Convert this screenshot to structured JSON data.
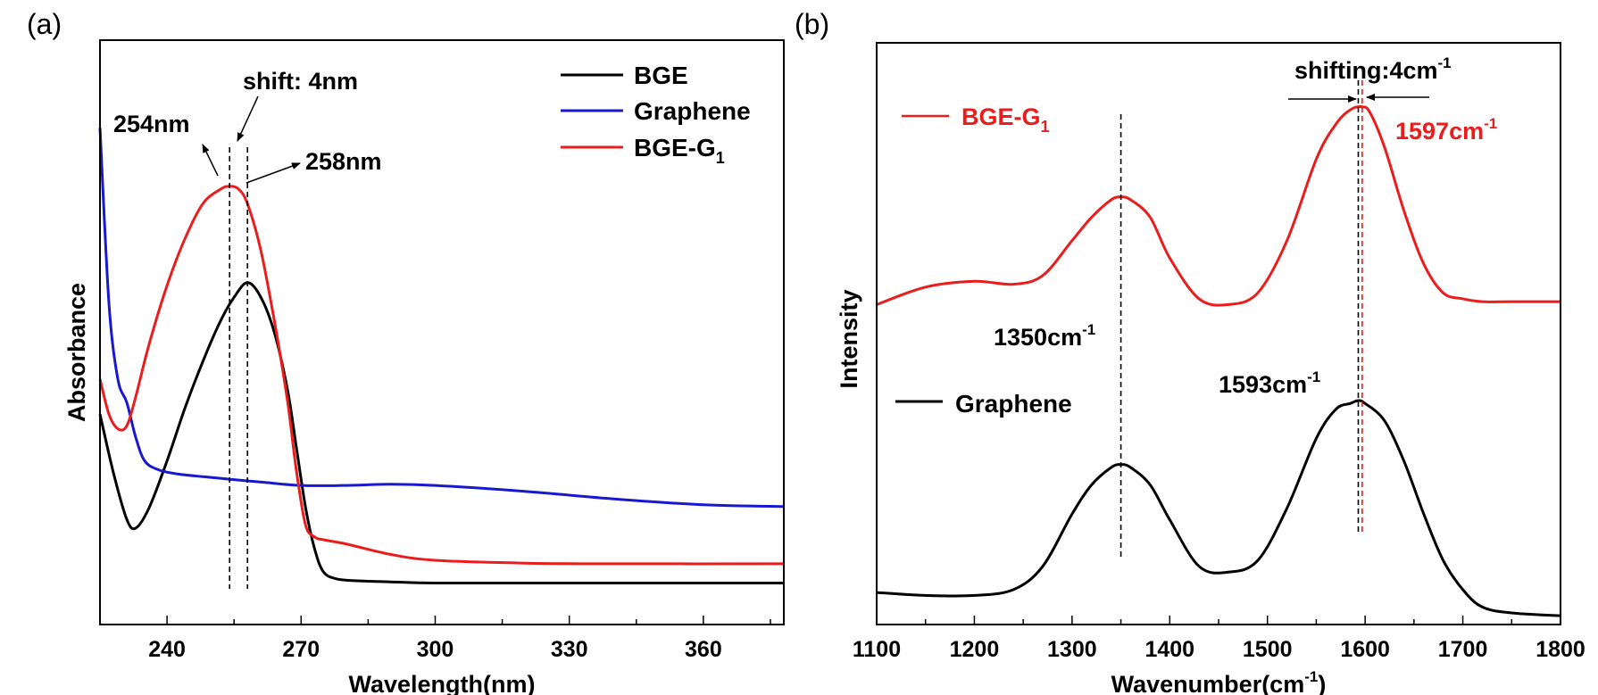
{
  "chart_data": [
    {
      "panel_label": "(a)",
      "type": "line",
      "xlabel": "Wavelength(nm)",
      "ylabel": "Absorbance",
      "xlim": [
        225,
        378
      ],
      "ylim": [
        0,
        1.0
      ],
      "xticks": [
        240,
        270,
        300,
        330,
        360
      ],
      "y_ticks_shown": false,
      "legend_position": "top-right",
      "series": [
        {
          "name": "BGE",
          "color": "#000000",
          "x": [
            225,
            228,
            231,
            233,
            236,
            240,
            244,
            248,
            252,
            255,
            258,
            261,
            264,
            267,
            269,
            271,
            273,
            275,
            278,
            282,
            290,
            300,
            320,
            340,
            378
          ],
          "y": [
            0.36,
            0.26,
            0.18,
            0.165,
            0.2,
            0.28,
            0.37,
            0.45,
            0.52,
            0.56,
            0.585,
            0.56,
            0.5,
            0.4,
            0.3,
            0.2,
            0.13,
            0.09,
            0.078,
            0.075,
            0.073,
            0.071,
            0.071,
            0.071,
            0.071
          ]
        },
        {
          "name": "Graphene",
          "color": "#1818d0",
          "x": [
            225,
            227,
            229,
            231,
            233,
            235,
            238,
            242,
            248,
            255,
            262,
            270,
            280,
            290,
            300,
            320,
            340,
            360,
            378
          ],
          "y": [
            0.85,
            0.55,
            0.42,
            0.38,
            0.32,
            0.28,
            0.265,
            0.258,
            0.253,
            0.248,
            0.243,
            0.238,
            0.238,
            0.24,
            0.238,
            0.228,
            0.215,
            0.205,
            0.202
          ]
        },
        {
          "name": "BGE-G",
          "name_subscript": "1",
          "color": "#ea1c1c",
          "x": [
            225,
            227,
            229,
            231,
            233,
            236,
            240,
            244,
            248,
            252,
            254,
            256,
            258,
            261,
            264,
            267,
            269,
            271,
            273,
            275,
            280,
            290,
            300,
            320,
            340,
            378
          ],
          "y": [
            0.42,
            0.36,
            0.335,
            0.34,
            0.39,
            0.48,
            0.58,
            0.66,
            0.72,
            0.745,
            0.75,
            0.745,
            0.72,
            0.64,
            0.52,
            0.38,
            0.26,
            0.17,
            0.15,
            0.145,
            0.138,
            0.12,
            0.11,
            0.105,
            0.104,
            0.104
          ]
        }
      ],
      "reference_lines_x": [
        254,
        258
      ],
      "annotations": [
        "254nm",
        "shift: 4nm",
        "258nm"
      ]
    },
    {
      "panel_label": "(b)",
      "type": "line",
      "xlabel": "Wavenumber(cm",
      "xlabel_superscript": "-1",
      "xlabel_suffix": ")",
      "ylabel": "Intensity",
      "xlim": [
        1100,
        1800
      ],
      "ylim": [
        0,
        1.0
      ],
      "xticks": [
        1100,
        1200,
        1300,
        1400,
        1500,
        1600,
        1700,
        1800
      ],
      "y_ticks_shown": false,
      "series": [
        {
          "name": "Graphene",
          "color": "#000000",
          "x": [
            1100,
            1150,
            1200,
            1240,
            1270,
            1300,
            1320,
            1340,
            1350,
            1360,
            1380,
            1400,
            1430,
            1460,
            1490,
            1520,
            1550,
            1570,
            1585,
            1593,
            1600,
            1620,
            1640,
            1660,
            1680,
            1700,
            1720,
            1750,
            1800
          ],
          "y": [
            0.055,
            0.05,
            0.05,
            0.06,
            0.1,
            0.19,
            0.24,
            0.27,
            0.275,
            0.27,
            0.24,
            0.18,
            0.1,
            0.09,
            0.11,
            0.2,
            0.32,
            0.37,
            0.38,
            0.385,
            0.38,
            0.35,
            0.28,
            0.19,
            0.11,
            0.06,
            0.03,
            0.02,
            0.015
          ]
        },
        {
          "name": "BGE-G",
          "name_subscript": "1",
          "color": "#ea1c1c",
          "x": [
            1100,
            1150,
            1200,
            1240,
            1270,
            1300,
            1320,
            1340,
            1350,
            1360,
            1380,
            1400,
            1430,
            1460,
            1490,
            1520,
            1550,
            1570,
            1585,
            1597,
            1605,
            1620,
            1640,
            1660,
            1680,
            1700,
            1720,
            1750,
            1800
          ],
          "y": [
            0.55,
            0.58,
            0.59,
            0.585,
            0.6,
            0.66,
            0.7,
            0.73,
            0.735,
            0.73,
            0.7,
            0.63,
            0.56,
            0.55,
            0.57,
            0.66,
            0.8,
            0.86,
            0.885,
            0.89,
            0.88,
            0.82,
            0.71,
            0.62,
            0.57,
            0.56,
            0.555,
            0.555,
            0.555
          ]
        }
      ],
      "reference_lines_x": [
        1350,
        1593,
        1597
      ],
      "annotations": [
        "1350cm",
        "1593cm",
        "1597cm",
        "shifting:4cm"
      ],
      "annotation_superscript": "-1"
    }
  ]
}
